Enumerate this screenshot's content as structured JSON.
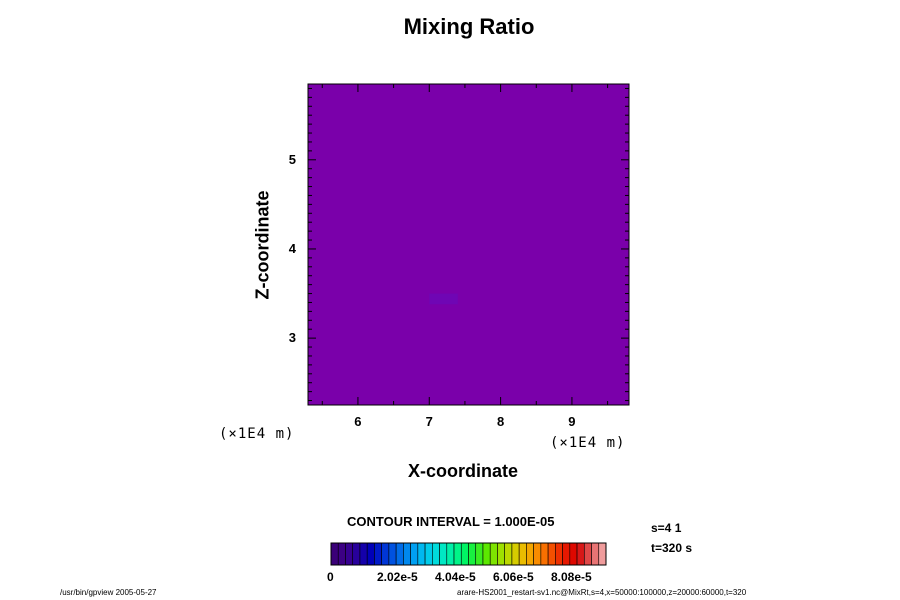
{
  "chart_data": {
    "type": "heatmap",
    "title": "Mixing Ratio",
    "xlabel": "X-coordinate",
    "ylabel": "Z-coordinate",
    "x_unit": "(×1E4 m)",
    "y_unit": "(×1E4 m)",
    "xlim": [
      5.3,
      9.8
    ],
    "ylim": [
      2.25,
      5.85
    ],
    "x_ticks": [
      "6",
      "7",
      "8",
      "9"
    ],
    "x_tick_values": [
      6,
      7,
      8,
      9
    ],
    "y_ticks": [
      "3",
      "4",
      "5"
    ],
    "y_tick_values": [
      3,
      4,
      5
    ],
    "field": {
      "background_value": 0,
      "background_color": "#7a00aa",
      "anomaly": {
        "x_range": [
          7.0,
          7.4
        ],
        "z_range": [
          3.38,
          3.5
        ],
        "color": "#6f06b4"
      }
    },
    "colorbar": {
      "colors": [
        "#3a0078",
        "#3c0084",
        "#360090",
        "#28009c",
        "#1400aa",
        "#0000b8",
        "#001ac8",
        "#0036d6",
        "#0052e0",
        "#006ce8",
        "#0088ee",
        "#00a0f2",
        "#00b8f0",
        "#00ccea",
        "#00dcdc",
        "#00e8c4",
        "#00f0a8",
        "#00f488",
        "#00f464",
        "#18f040",
        "#3aec20",
        "#5ce800",
        "#7ee400",
        "#9ee000",
        "#bcd800",
        "#d6cc00",
        "#eabc00",
        "#f4a600",
        "#f88c00",
        "#f87000",
        "#f45000",
        "#ee3000",
        "#e61800",
        "#de0800",
        "#d81818",
        "#e04848",
        "#e87474",
        "#f09c9c"
      ],
      "tick_labels": [
        "0",
        "2.02e-5",
        "4.04e-5",
        "6.06e-5",
        "8.08e-5"
      ],
      "min": 0,
      "max": 0.0001
    },
    "contour_interval": "CONTOUR INTERVAL = 1.000E-05",
    "info": [
      "s=4 1",
      "t=320 s"
    ]
  },
  "footer": {
    "left": "/usr/bin/gpview 2005-05-27",
    "right": "arare-HS2001_restart-sv1.nc@MixRt,s=4,x=50000:100000,z=20000:60000,t=320"
  }
}
